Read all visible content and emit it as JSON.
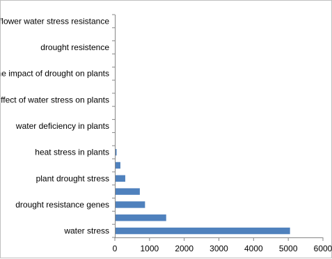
{
  "chart_data": {
    "type": "bar",
    "orientation": "horizontal",
    "title": "",
    "xlabel": "",
    "ylabel": "",
    "categories": [
      "water stress",
      "",
      "drought resistance genes",
      "",
      "plant drought stress",
      "",
      "heat stress in plants",
      "",
      "water deficiency in plants",
      "",
      "effect of water stress on plants",
      "",
      "the impact of drought on plants",
      "",
      "drought resistence",
      "",
      "sunflower water stress resistance"
    ],
    "values": [
      5050,
      1480,
      870,
      720,
      300,
      160,
      50,
      0,
      0,
      0,
      0,
      0,
      0,
      0,
      0,
      0,
      0
    ],
    "xlim": [
      0,
      6000
    ],
    "xticks": [
      "0",
      "1000",
      "2000",
      "3000",
      "4000",
      "5000",
      "6000"
    ],
    "grid": false,
    "legend": "none",
    "bar_color": "#4f81bd",
    "axis_color": "#868686"
  }
}
